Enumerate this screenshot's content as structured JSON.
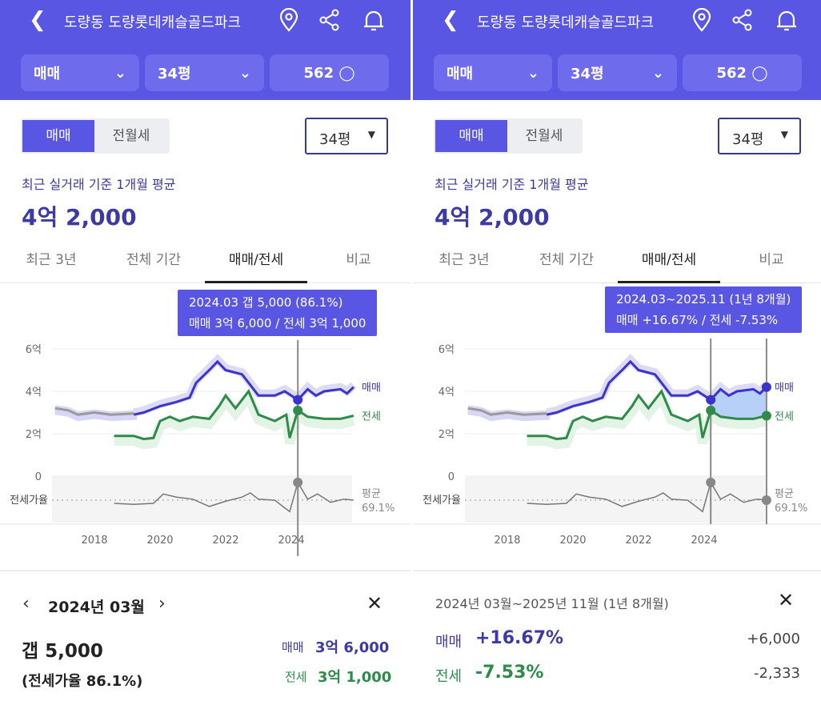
{
  "header": {
    "title": "도량동 도량롯데캐슬골드파크",
    "back_icon": "chevron-left-icon",
    "icons": [
      "map-pin-icon",
      "share-icon",
      "bell-icon"
    ]
  },
  "filters": {
    "deal_type": "매매",
    "size": "34평",
    "comments": "562"
  },
  "segment": {
    "active": "매매",
    "other": "전월세"
  },
  "size_select": "34평",
  "summary": {
    "label": "최근 실거래 기준 1개월 평균",
    "value": "4억 2,000"
  },
  "tabs": [
    "최근 3년",
    "전체 기간",
    "매매/전세",
    "비교"
  ],
  "colors": {
    "accent": "#5a56e4",
    "sale": "#3a35c8",
    "jeonse": "#2e8b4a",
    "ratio": "#777777"
  },
  "chart_data": {
    "type": "line",
    "yticks": [
      "6억",
      "4억",
      "2억",
      "0"
    ],
    "xticks": [
      "2018",
      "2020",
      "2022",
      "2024"
    ],
    "ylabel_ratio": "전세가율",
    "ratio_avg_label": "평균",
    "ratio_avg": "69.1%",
    "legend": {
      "sale": "매매",
      "jeonse": "전세"
    },
    "ylim": [
      0,
      6
    ],
    "sale_early": [
      [
        2016.8,
        3.2
      ],
      [
        2017.2,
        3.1
      ],
      [
        2017.5,
        2.9
      ],
      [
        2018,
        3.0
      ],
      [
        2018.5,
        2.9
      ],
      [
        2019.2,
        2.95
      ]
    ],
    "sale": [
      [
        2019.2,
        2.9
      ],
      [
        2019.5,
        3.0
      ],
      [
        2020,
        3.3
      ],
      [
        2020.5,
        3.5
      ],
      [
        2020.9,
        3.7
      ],
      [
        2021.1,
        4.4
      ],
      [
        2021.5,
        5.0
      ],
      [
        2021.75,
        5.4
      ],
      [
        2022,
        5.0
      ],
      [
        2022.5,
        4.8
      ],
      [
        2022.75,
        4.3
      ],
      [
        2023,
        3.8
      ],
      [
        2023.5,
        3.8
      ],
      [
        2023.8,
        4.0
      ],
      [
        2024.2,
        3.6
      ],
      [
        2024.5,
        4.1
      ],
      [
        2024.75,
        3.8
      ],
      [
        2025,
        4.0
      ],
      [
        2025.5,
        4.1
      ],
      [
        2025.7,
        3.9
      ],
      [
        2025.9,
        4.2
      ]
    ],
    "jeonse": [
      [
        2018.6,
        1.9
      ],
      [
        2019.2,
        1.9
      ],
      [
        2019.5,
        1.75
      ],
      [
        2019.8,
        1.8
      ],
      [
        2020,
        2.6
      ],
      [
        2020.3,
        2.8
      ],
      [
        2020.6,
        2.6
      ],
      [
        2021,
        2.8
      ],
      [
        2021.5,
        2.7
      ],
      [
        2021.8,
        3.3
      ],
      [
        2022,
        3.8
      ],
      [
        2022.3,
        3.2
      ],
      [
        2022.7,
        4.0
      ],
      [
        2023,
        2.9
      ],
      [
        2023.5,
        2.6
      ],
      [
        2023.85,
        2.9
      ],
      [
        2023.95,
        1.8
      ],
      [
        2024.2,
        3.1
      ],
      [
        2024.5,
        2.8
      ],
      [
        2025,
        2.7
      ],
      [
        2025.5,
        2.7
      ],
      [
        2025.9,
        2.85
      ]
    ],
    "ratio": [
      [
        2018.6,
        66
      ],
      [
        2019.2,
        65
      ],
      [
        2019.8,
        66
      ],
      [
        2020.1,
        75
      ],
      [
        2020.5,
        72
      ],
      [
        2021,
        70
      ],
      [
        2021.5,
        63
      ],
      [
        2022,
        68
      ],
      [
        2022.5,
        72
      ],
      [
        2022.75,
        76
      ],
      [
        2023,
        70
      ],
      [
        2023.5,
        69
      ],
      [
        2023.95,
        58
      ],
      [
        2024.2,
        86.1
      ],
      [
        2024.5,
        70
      ],
      [
        2024.8,
        75
      ],
      [
        2025.2,
        67
      ],
      [
        2025.6,
        70
      ],
      [
        2025.9,
        69.1
      ]
    ]
  },
  "left": {
    "tooltip": {
      "line1": "2024.03  갭 5,000 (86.1%)",
      "line2": "매매 3억 6,000 / 전세 3억 1,000"
    },
    "detail": {
      "month": "2024년 03월",
      "gap": "갭 5,000",
      "ratio": "(전세가율 86.1%)",
      "sale_label": "매매",
      "sale_value": "3억 6,000",
      "jeonse_label": "전세",
      "jeonse_value": "3억 1,000"
    }
  },
  "right": {
    "tooltip": {
      "line1": "2024.03~2025.11 (1년 8개월)",
      "line2": "매매 +16.67%  /  전세 -7.53%"
    },
    "detail": {
      "period": "2024년 03월~2025년 11월 (1년 8개월)",
      "sale_label": "매매",
      "sale_pct": "+16.67%",
      "sale_diff": "+6,000",
      "jeonse_label": "전세",
      "jeonse_pct": "-7.53%",
      "jeonse_diff": "-2,333"
    }
  }
}
